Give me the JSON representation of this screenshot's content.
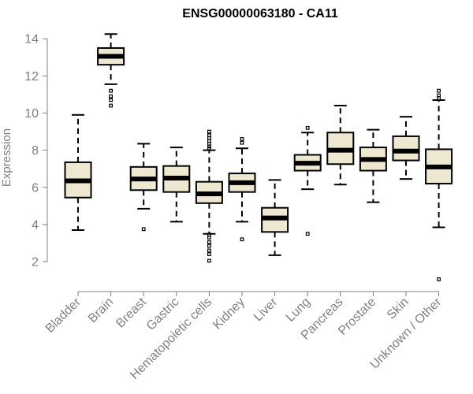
{
  "chart_data": {
    "type": "boxplot",
    "title": "ENSG00000063180 - CA11",
    "xlabel": "",
    "ylabel": "Expression",
    "ylim": [
      0.9,
      14.6
    ],
    "yticks": [
      2,
      4,
      6,
      8,
      10,
      12,
      14
    ],
    "grid": false,
    "legend": "none",
    "colors": {
      "box_fill": "#EEE8D0",
      "stroke": "#000000",
      "axis": "#808080",
      "tick_text": "#808080",
      "title": "#000000"
    },
    "categories": [
      "Bladder",
      "Brain",
      "Breast",
      "Gastric",
      "Hematopoietic cells",
      "Kidney",
      "Liver",
      "Lung",
      "Pancreas",
      "Prostate",
      "Skin",
      "Unknown / Other"
    ],
    "boxes": [
      {
        "category": "Bladder",
        "whisker_low": 3.7,
        "q1": 5.45,
        "median": 6.35,
        "q3": 7.35,
        "whisker_high": 9.9,
        "outliers": []
      },
      {
        "category": "Brain",
        "whisker_low": 11.55,
        "q1": 12.6,
        "median": 13.05,
        "q3": 13.5,
        "whisker_high": 14.25,
        "outliers": [
          11.2,
          10.9,
          10.7,
          10.4
        ]
      },
      {
        "category": "Breast",
        "whisker_low": 4.85,
        "q1": 5.85,
        "median": 6.45,
        "q3": 7.1,
        "whisker_high": 8.35,
        "outliers": [
          3.75
        ]
      },
      {
        "category": "Gastric",
        "whisker_low": 4.15,
        "q1": 5.75,
        "median": 6.5,
        "q3": 7.15,
        "whisker_high": 8.15,
        "outliers": []
      },
      {
        "category": "Hematopoietic cells",
        "whisker_low": 3.5,
        "q1": 5.15,
        "median": 5.65,
        "q3": 6.3,
        "whisker_high": 8.0,
        "outliers": [
          9.0,
          8.8,
          8.65,
          8.5,
          8.35,
          8.2,
          8.1,
          3.45,
          3.3,
          3.05,
          2.85,
          2.6,
          2.4,
          2.05
        ]
      },
      {
        "category": "Kidney",
        "whisker_low": 4.15,
        "q1": 5.75,
        "median": 6.25,
        "q3": 6.75,
        "whisker_high": 8.1,
        "outliers": [
          8.6,
          8.4,
          3.2
        ]
      },
      {
        "category": "Liver",
        "whisker_low": 2.35,
        "q1": 3.6,
        "median": 4.35,
        "q3": 4.9,
        "whisker_high": 6.4,
        "outliers": []
      },
      {
        "category": "Lung",
        "whisker_low": 5.9,
        "q1": 6.9,
        "median": 7.3,
        "q3": 7.75,
        "whisker_high": 8.95,
        "outliers": [
          9.2,
          3.5
        ]
      },
      {
        "category": "Pancreas",
        "whisker_low": 6.15,
        "q1": 7.25,
        "median": 8.0,
        "q3": 8.95,
        "whisker_high": 10.4,
        "outliers": []
      },
      {
        "category": "Prostate",
        "whisker_low": 5.2,
        "q1": 6.9,
        "median": 7.5,
        "q3": 8.15,
        "whisker_high": 9.1,
        "outliers": []
      },
      {
        "category": "Skin",
        "whisker_low": 6.45,
        "q1": 7.45,
        "median": 7.95,
        "q3": 8.75,
        "whisker_high": 9.8,
        "outliers": []
      },
      {
        "category": "Unknown / Other",
        "whisker_low": 3.85,
        "q1": 6.2,
        "median": 7.1,
        "q3": 8.05,
        "whisker_high": 10.7,
        "outliers": [
          11.2,
          10.95,
          10.8,
          1.05
        ]
      }
    ]
  }
}
